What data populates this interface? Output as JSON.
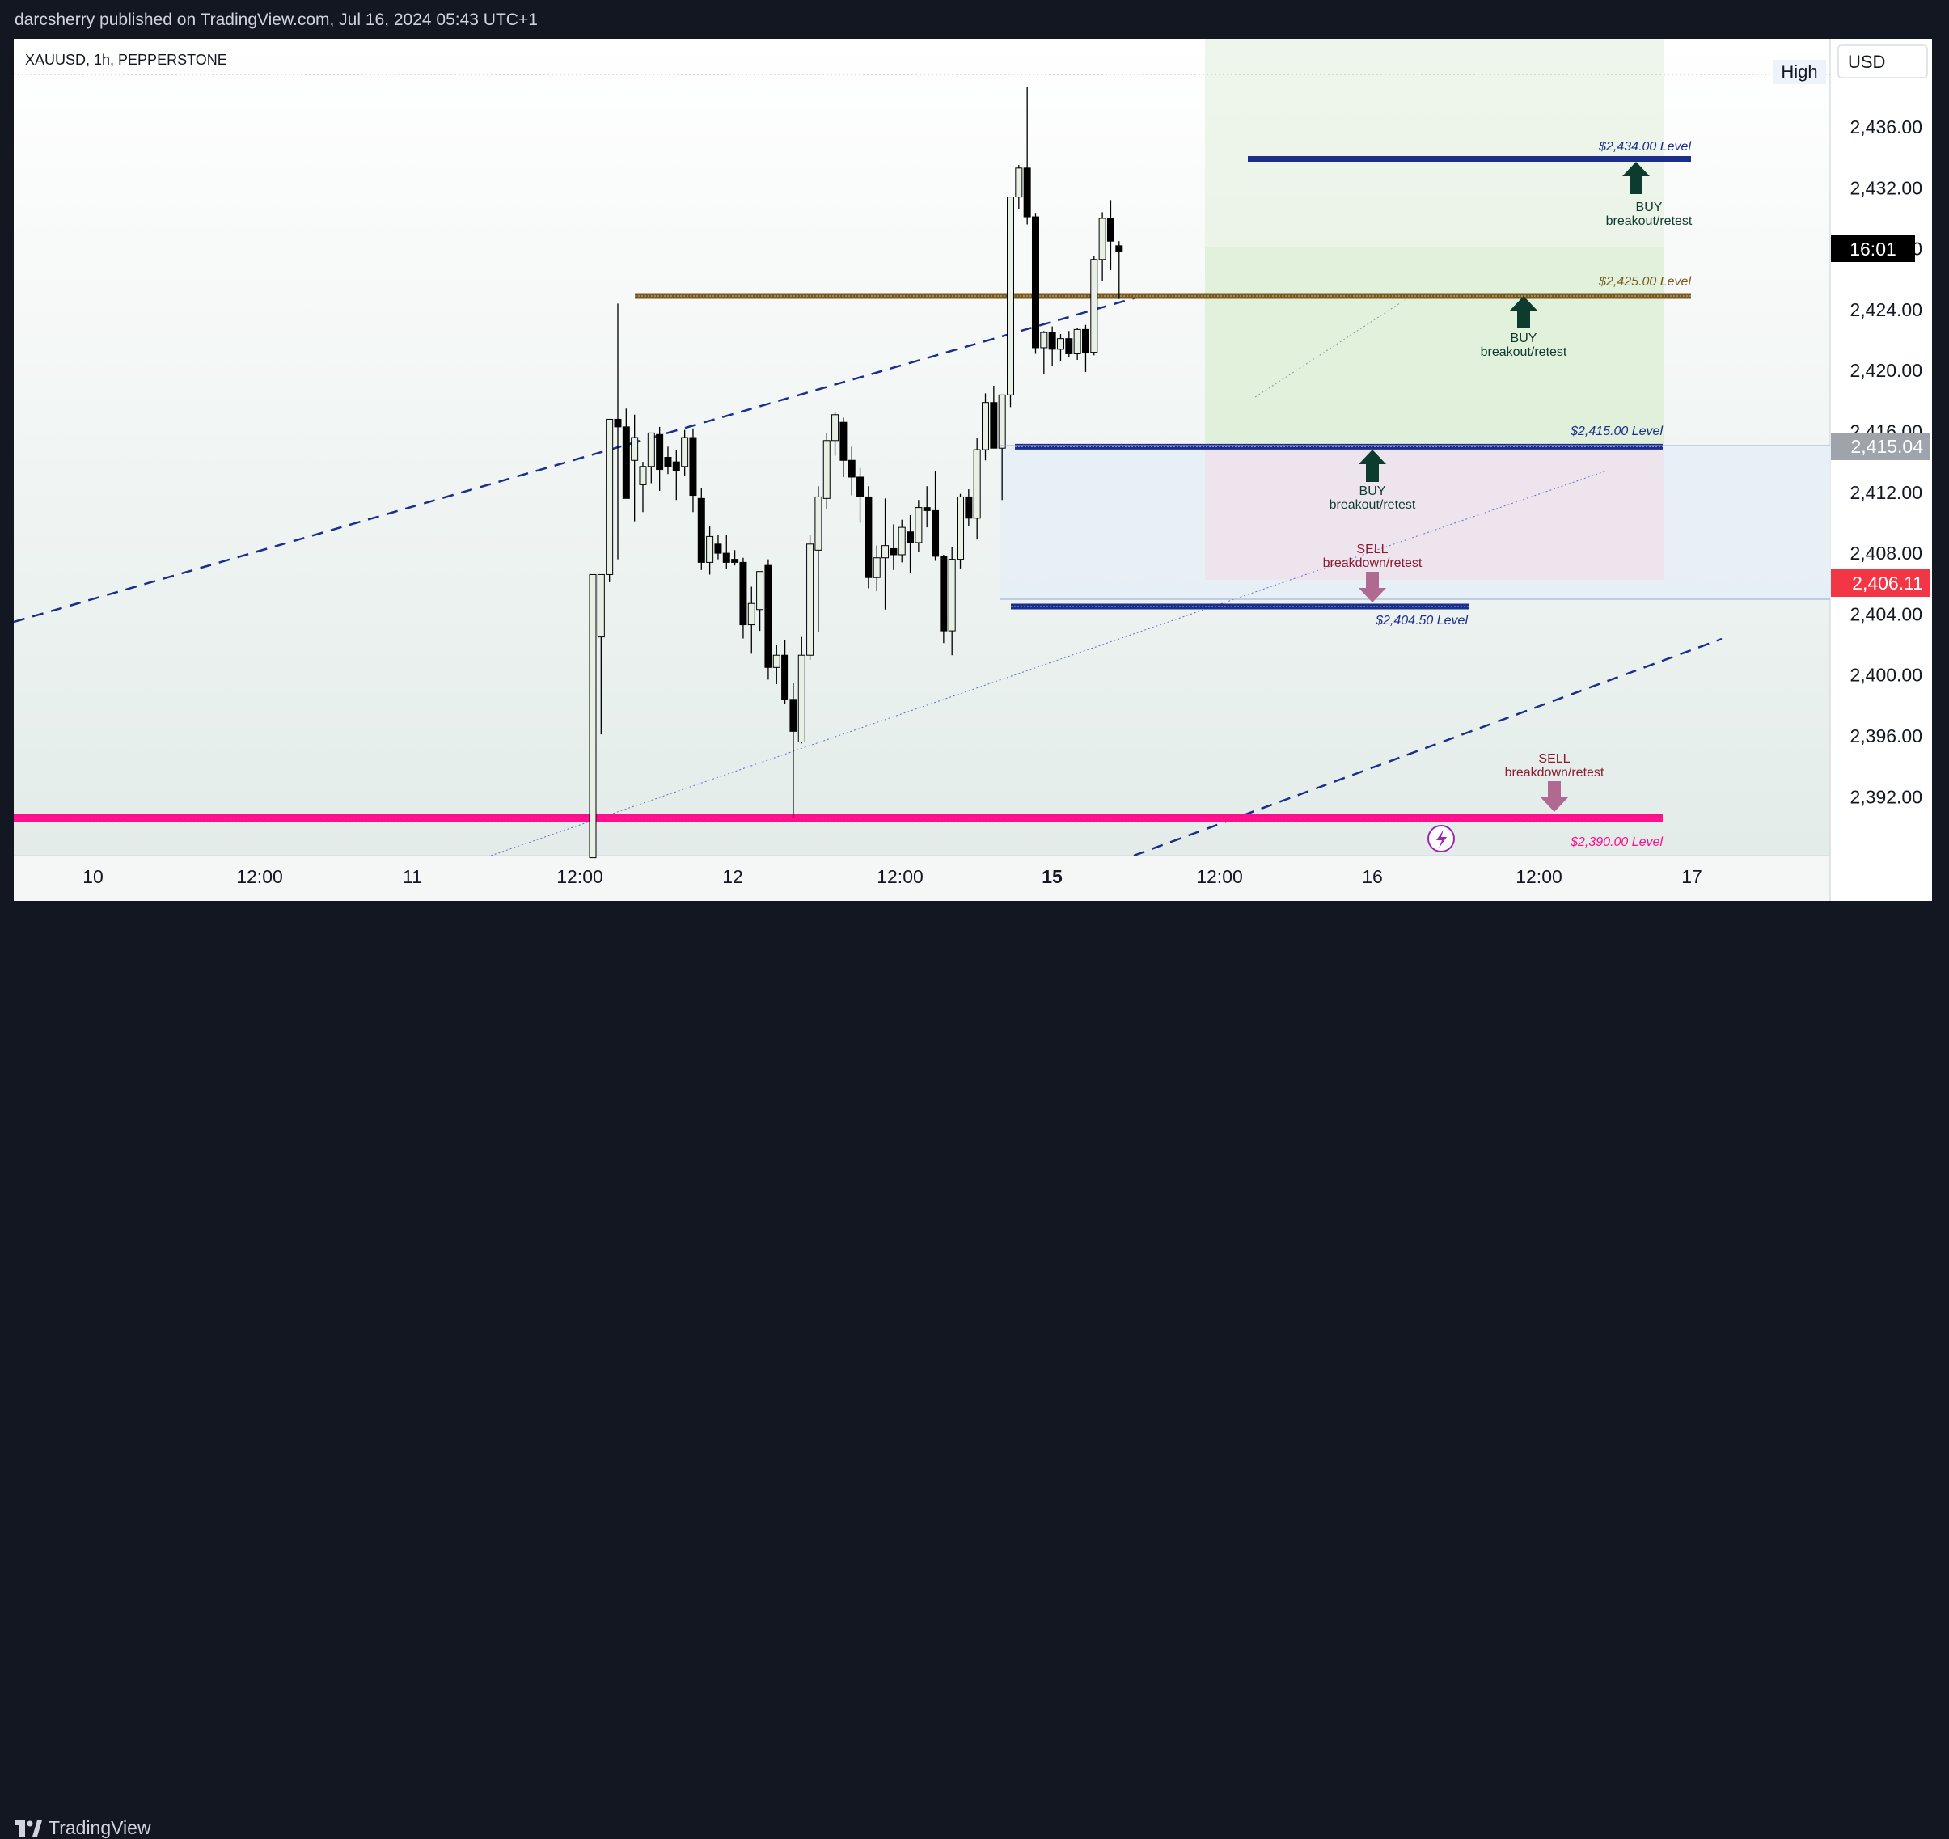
{
  "header": {
    "published_text": "darcsherry published on TradingView.com, Jul 16, 2024 05:43 UTC+1"
  },
  "symbol_info": "XAUUSD, 1h, PEPPERSTONE",
  "currency": "USD",
  "high_label": "High",
  "price_badges": {
    "countdown": "16:01",
    "gray_price": "2,415.04",
    "red_price": "2,406.11"
  },
  "footer": {
    "brand": "TradingView"
  },
  "colors": {
    "up_body": "#e8f0e6",
    "down_body": "#000000",
    "blue_level": "#1c2e8c",
    "brown_level": "#7a5a1e",
    "magenta_level": "#ff0f8c",
    "buy_arrow": "#0d3b2e",
    "sell_arrow": "#b06a92",
    "sell_text": "#8b1a2f",
    "red_badge": "#f23645",
    "gray_badge": "#9fa3ab"
  },
  "chart_data": {
    "type": "candlestick",
    "title": "XAUUSD, 1h, PEPPERSTONE",
    "ylim": [
      2388,
      2439
    ],
    "y_ticks": [
      "2,436.00",
      "2,432.00",
      "2,428.00",
      "2,424.00",
      "2,420.00",
      "2,416.00",
      "2,412.00",
      "2,408.00",
      "2,404.00",
      "2,400.00",
      "2,396.00",
      "2,392.00"
    ],
    "y_tick_values": [
      2436,
      2432,
      2428,
      2424,
      2420,
      2416,
      2412,
      2408,
      2404,
      2400,
      2396,
      2392
    ],
    "x_ticks": [
      "10",
      "12:00",
      "11",
      "12:00",
      "12",
      "12:00",
      "15",
      "12:00",
      "16",
      "12:00",
      "17"
    ],
    "candles": [
      {
        "o": 2388.0,
        "h": 2406.6,
        "l": 2388.0,
        "c": 2406.6
      },
      {
        "o": 2402.5,
        "h": 2406.6,
        "l": 2396.1,
        "c": 2406.6
      },
      {
        "o": 2406.6,
        "h": 2416.8,
        "l": 2406.1,
        "c": 2416.8
      },
      {
        "o": 2416.8,
        "h": 2424.4,
        "l": 2407.6,
        "c": 2416.3
      },
      {
        "o": 2416.3,
        "h": 2417.5,
        "l": 2411.6,
        "c": 2411.6
      },
      {
        "o": 2414.1,
        "h": 2417.1,
        "l": 2410.1,
        "c": 2415.6
      },
      {
        "o": 2412.5,
        "h": 2414.0,
        "l": 2410.7,
        "c": 2413.7
      },
      {
        "o": 2413.7,
        "h": 2415.9,
        "l": 2412.6,
        "c": 2415.9
      },
      {
        "o": 2415.8,
        "h": 2416.3,
        "l": 2412.1,
        "c": 2413.5
      },
      {
        "o": 2414.3,
        "h": 2415.0,
        "l": 2413.2,
        "c": 2413.7
      },
      {
        "o": 2414.0,
        "h": 2414.8,
        "l": 2411.5,
        "c": 2413.4
      },
      {
        "o": 2413.7,
        "h": 2416.1,
        "l": 2413.1,
        "c": 2415.6
      },
      {
        "o": 2415.6,
        "h": 2416.2,
        "l": 2410.7,
        "c": 2411.8
      },
      {
        "o": 2411.6,
        "h": 2412.3,
        "l": 2406.9,
        "c": 2407.4
      },
      {
        "o": 2407.4,
        "h": 2409.8,
        "l": 2406.6,
        "c": 2409.1
      },
      {
        "o": 2408.6,
        "h": 2409.2,
        "l": 2407.6,
        "c": 2408.0
      },
      {
        "o": 2408.0,
        "h": 2409.2,
        "l": 2407.0,
        "c": 2407.4
      },
      {
        "o": 2407.6,
        "h": 2408.2,
        "l": 2407.2,
        "c": 2407.4
      },
      {
        "o": 2407.4,
        "h": 2407.7,
        "l": 2402.4,
        "c": 2403.3
      },
      {
        "o": 2403.3,
        "h": 2405.8,
        "l": 2401.4,
        "c": 2404.7
      },
      {
        "o": 2404.3,
        "h": 2406.8,
        "l": 2402.9,
        "c": 2406.8
      },
      {
        "o": 2407.2,
        "h": 2407.6,
        "l": 2399.7,
        "c": 2400.5
      },
      {
        "o": 2400.5,
        "h": 2402.0,
        "l": 2399.4,
        "c": 2401.3
      },
      {
        "o": 2401.3,
        "h": 2402.3,
        "l": 2398.1,
        "c": 2398.4
      },
      {
        "o": 2398.4,
        "h": 2399.5,
        "l": 2390.6,
        "c": 2396.3
      },
      {
        "o": 2395.6,
        "h": 2402.5,
        "l": 2395.5,
        "c": 2401.3
      },
      {
        "o": 2401.3,
        "h": 2409.2,
        "l": 2401.0,
        "c": 2408.6
      },
      {
        "o": 2408.2,
        "h": 2412.4,
        "l": 2402.8,
        "c": 2411.7
      },
      {
        "o": 2411.6,
        "h": 2415.9,
        "l": 2410.9,
        "c": 2415.4
      },
      {
        "o": 2415.4,
        "h": 2417.3,
        "l": 2414.4,
        "c": 2417.1
      },
      {
        "o": 2416.6,
        "h": 2416.9,
        "l": 2413.0,
        "c": 2414.1
      },
      {
        "o": 2414.1,
        "h": 2415.0,
        "l": 2411.8,
        "c": 2413.0
      },
      {
        "o": 2413.0,
        "h": 2413.6,
        "l": 2410.0,
        "c": 2411.7
      },
      {
        "o": 2411.7,
        "h": 2412.4,
        "l": 2405.7,
        "c": 2406.4
      },
      {
        "o": 2406.4,
        "h": 2408.5,
        "l": 2405.5,
        "c": 2407.7
      },
      {
        "o": 2407.7,
        "h": 2411.6,
        "l": 2404.3,
        "c": 2408.5
      },
      {
        "o": 2408.3,
        "h": 2409.9,
        "l": 2406.9,
        "c": 2407.9
      },
      {
        "o": 2407.9,
        "h": 2410.2,
        "l": 2407.4,
        "c": 2409.7
      },
      {
        "o": 2409.4,
        "h": 2410.5,
        "l": 2406.7,
        "c": 2408.7
      },
      {
        "o": 2408.7,
        "h": 2411.5,
        "l": 2408.1,
        "c": 2411.0
      },
      {
        "o": 2411.0,
        "h": 2412.4,
        "l": 2409.7,
        "c": 2410.8
      },
      {
        "o": 2410.8,
        "h": 2413.4,
        "l": 2407.5,
        "c": 2407.8
      },
      {
        "o": 2407.8,
        "h": 2407.9,
        "l": 2402.1,
        "c": 2402.9
      },
      {
        "o": 2402.9,
        "h": 2408.4,
        "l": 2401.3,
        "c": 2407.6
      },
      {
        "o": 2407.6,
        "h": 2411.9,
        "l": 2407.0,
        "c": 2411.7
      },
      {
        "o": 2411.7,
        "h": 2412.2,
        "l": 2409.8,
        "c": 2410.3
      },
      {
        "o": 2410.3,
        "h": 2415.6,
        "l": 2408.9,
        "c": 2414.8
      },
      {
        "o": 2414.8,
        "h": 2418.5,
        "l": 2414.1,
        "c": 2417.9
      },
      {
        "o": 2417.9,
        "h": 2419.0,
        "l": 2414.9,
        "c": 2414.9
      },
      {
        "o": 2414.9,
        "h": 2418.4,
        "l": 2411.5,
        "c": 2418.4
      },
      {
        "o": 2418.4,
        "h": 2431.4,
        "l": 2417.6,
        "c": 2431.4
      },
      {
        "o": 2431.4,
        "h": 2433.5,
        "l": 2430.6,
        "c": 2433.3
      },
      {
        "o": 2433.3,
        "h": 2438.6,
        "l": 2429.6,
        "c": 2430.1
      },
      {
        "o": 2430.1,
        "h": 2430.3,
        "l": 2421.1,
        "c": 2421.5
      },
      {
        "o": 2421.5,
        "h": 2422.6,
        "l": 2419.8,
        "c": 2422.5
      },
      {
        "o": 2422.5,
        "h": 2422.9,
        "l": 2420.3,
        "c": 2421.4
      },
      {
        "o": 2421.4,
        "h": 2422.4,
        "l": 2420.6,
        "c": 2422.1
      },
      {
        "o": 2422.1,
        "h": 2422.6,
        "l": 2420.9,
        "c": 2421.1
      },
      {
        "o": 2421.1,
        "h": 2422.8,
        "l": 2420.7,
        "c": 2422.7
      },
      {
        "o": 2422.7,
        "h": 2423.0,
        "l": 2419.9,
        "c": 2421.2
      },
      {
        "o": 2421.2,
        "h": 2427.5,
        "l": 2421.0,
        "c": 2427.3
      },
      {
        "o": 2427.3,
        "h": 2430.4,
        "l": 2425.9,
        "c": 2430.0
      },
      {
        "o": 2430.0,
        "h": 2431.2,
        "l": 2426.6,
        "c": 2428.5
      },
      {
        "o": 2428.2,
        "h": 2428.5,
        "l": 2424.7,
        "c": 2427.8
      }
    ],
    "horizontal_levels": [
      {
        "label": "$2,434.00 Level",
        "price": 2433.9
      },
      {
        "label": "$2,425.00 Level",
        "price": 2424.9
      },
      {
        "label": "$2,415.00 Level",
        "price": 2415.0
      },
      {
        "label": "$2,404.50 Level",
        "price": 2404.5
      },
      {
        "label": "$2,390.00 Level",
        "price": 2390.6
      }
    ],
    "annotations": [
      {
        "type": "buy",
        "text1": "BUY",
        "text2": "breakout/retest"
      },
      {
        "type": "buy",
        "text1": "BUY",
        "text2": "breakout/retest"
      },
      {
        "type": "buy",
        "text1": "BUY",
        "text2": "breakout/retest"
      },
      {
        "type": "sell",
        "text1": "SELL",
        "text2": "breakdown/retest"
      },
      {
        "type": "sell",
        "text1": "SELL",
        "text2": "breakdown/retest"
      }
    ]
  }
}
